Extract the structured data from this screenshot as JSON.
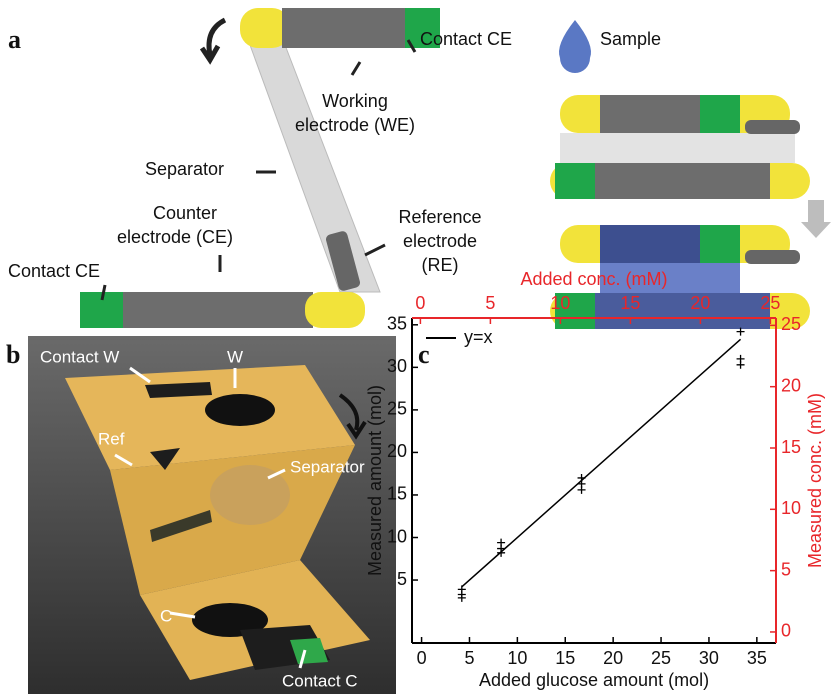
{
  "panel_labels": [
    "a",
    "b",
    "c"
  ],
  "diagram": {
    "contact_ce_top": "Contact CE",
    "working_electrode": [
      "Working",
      "electrode (WE)"
    ],
    "separator": "Separator",
    "counter_electrode": [
      "Counter",
      "electrode (CE)"
    ],
    "reference_electrode": [
      "Reference",
      "electrode",
      "(RE)"
    ],
    "contact_ce_bottom": "Contact CE",
    "sample": "Sample"
  },
  "photo": {
    "contact_w": "Contact W",
    "w": "W",
    "ref": "Ref",
    "separator": "Separator",
    "c": "C",
    "contact_c": "Contact C"
  },
  "chart_data": {
    "type": "scatter",
    "xlabel": "Added glucose amount (mol)",
    "ylabel": "Measured amount (mol)",
    "x2label": "Added conc. (mM)",
    "y2label": "Measured conc. (mM)",
    "xlim": [
      -1,
      37
    ],
    "xticks": [
      0,
      5,
      10,
      15,
      20,
      25,
      30,
      35
    ],
    "ylim": [
      -2.4,
      35.8
    ],
    "yticks": [
      5,
      10,
      15,
      20,
      25,
      30,
      35
    ],
    "x2lim": [
      -0.6,
      25.4
    ],
    "x2ticks": [
      0,
      5,
      10,
      15,
      20,
      25
    ],
    "y2lim": [
      -0.9,
      25.6
    ],
    "y2ticks": [
      0,
      5,
      10,
      15,
      20,
      25
    ],
    "secondary_color": "#e8262a",
    "series": [
      {
        "name": "y=x",
        "type": "line",
        "color": "#000000",
        "x": [
          4.2,
          33.3
        ],
        "values": [
          4.2,
          33.3
        ]
      },
      {
        "type": "scatter",
        "color": "#000000",
        "x": [
          4.2,
          4.2,
          4.2,
          8.3,
          8.3,
          8.3,
          16.7,
          16.7,
          16.7,
          33.3,
          33.3,
          33.3
        ],
        "values": [
          3.9,
          3.3,
          2.9,
          9.4,
          8.7,
          8.2,
          17.0,
          16.3,
          15.6,
          34.2,
          31.0,
          30.3
        ]
      }
    ]
  }
}
